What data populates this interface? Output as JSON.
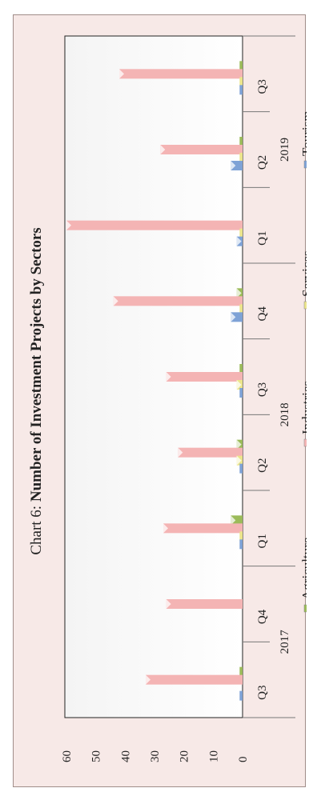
{
  "chart_data": {
    "type": "bar",
    "title_prefix": "Chart 6: ",
    "title_main": "Number of Investment Projects by Sectors",
    "categories": [
      "Q3",
      "Q4",
      "Q1",
      "Q2",
      "Q3",
      "Q4",
      "Q1",
      "Q2",
      "Q3"
    ],
    "year_groups": [
      {
        "label": "2017",
        "start": 0,
        "end": 1
      },
      {
        "label": "2018",
        "start": 2,
        "end": 5
      },
      {
        "label": "2019",
        "start": 6,
        "end": 8
      }
    ],
    "series": [
      {
        "name": "Agriculture",
        "values": [
          1,
          0,
          4,
          2,
          1,
          2,
          0,
          1,
          1
        ]
      },
      {
        "name": "Industries",
        "values": [
          33,
          26,
          27,
          22,
          26,
          44,
          60,
          28,
          42
        ]
      },
      {
        "name": "Services",
        "values": [
          0,
          0,
          1,
          2,
          2,
          1,
          1,
          1,
          1
        ]
      },
      {
        "name": "Tourism",
        "values": [
          1,
          0,
          1,
          1,
          1,
          4,
          2,
          4,
          1
        ]
      }
    ],
    "ylim": [
      0,
      60
    ],
    "y_ticks": [
      "0",
      "10",
      "20",
      "30",
      "40",
      "50",
      "60"
    ],
    "colors": {
      "Agriculture": "#9bbb59",
      "Industries": "#f4b4b4",
      "Services": "#ece58a",
      "Tourism": "#7ea2d6"
    },
    "legend_position": "bottom",
    "grid": false
  }
}
